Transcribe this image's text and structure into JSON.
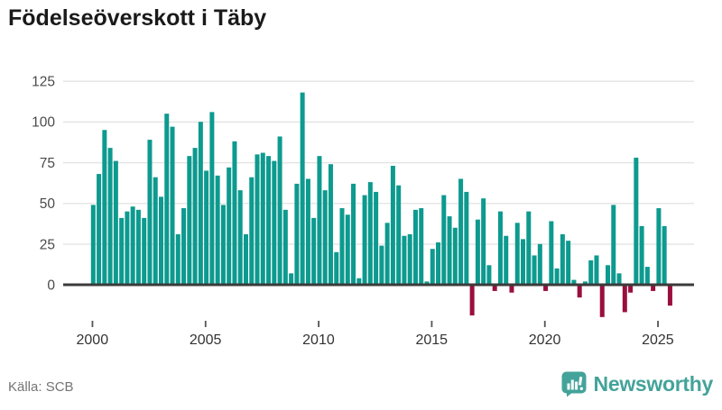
{
  "header": {
    "title": "Födelseöverskott i Täby"
  },
  "footer": {
    "source_label": "Källa: SCB",
    "brand_name": "Newsworthy",
    "brand_icon": "bar-chart-speech-bubble-icon"
  },
  "colors": {
    "positive_bar": "#0d9a8f",
    "negative_bar": "#9a0e3e",
    "axis_line": "#3b3b3b",
    "gridline": "#e4e4e4",
    "y_tick_text": "#4a4a4a",
    "x_tick_text": "#333333",
    "tick_mark": "#555555",
    "title_text": "#1a1a1a",
    "source_text": "#757575",
    "brand_teal": "#43a39a"
  },
  "chart_data": {
    "type": "bar",
    "title": "Födelseöverskott i Täby",
    "xlabel": "",
    "ylabel": "",
    "start_period": "2000Q1",
    "frequency": "quarterly",
    "x_ticks": [
      2000,
      2005,
      2010,
      2015,
      2020,
      2025
    ],
    "y_ticks": [
      0,
      25,
      50,
      75,
      100,
      125
    ],
    "ylim": [
      -25,
      130
    ],
    "grid": true,
    "legend": false,
    "values": [
      49,
      68,
      95,
      84,
      76,
      41,
      45,
      48,
      46,
      41,
      89,
      66,
      54,
      105,
      97,
      31,
      47,
      79,
      84,
      100,
      70,
      106,
      67,
      49,
      72,
      88,
      58,
      31,
      66,
      80,
      81,
      79,
      76,
      91,
      46,
      7,
      62,
      118,
      65,
      41,
      79,
      58,
      74,
      20,
      47,
      43,
      62,
      4,
      55,
      63,
      57,
      24,
      38,
      73,
      61,
      30,
      31,
      46,
      47,
      2,
      22,
      26,
      55,
      42,
      35,
      65,
      57,
      -18,
      40,
      53,
      12,
      -3,
      45,
      30,
      -4,
      38,
      28,
      45,
      18,
      25,
      -3,
      39,
      10,
      31,
      27,
      3,
      -7,
      2,
      15,
      18,
      -19,
      12,
      49,
      7,
      -16,
      -4,
      78,
      36,
      11,
      -3,
      47,
      36,
      -12
    ]
  }
}
